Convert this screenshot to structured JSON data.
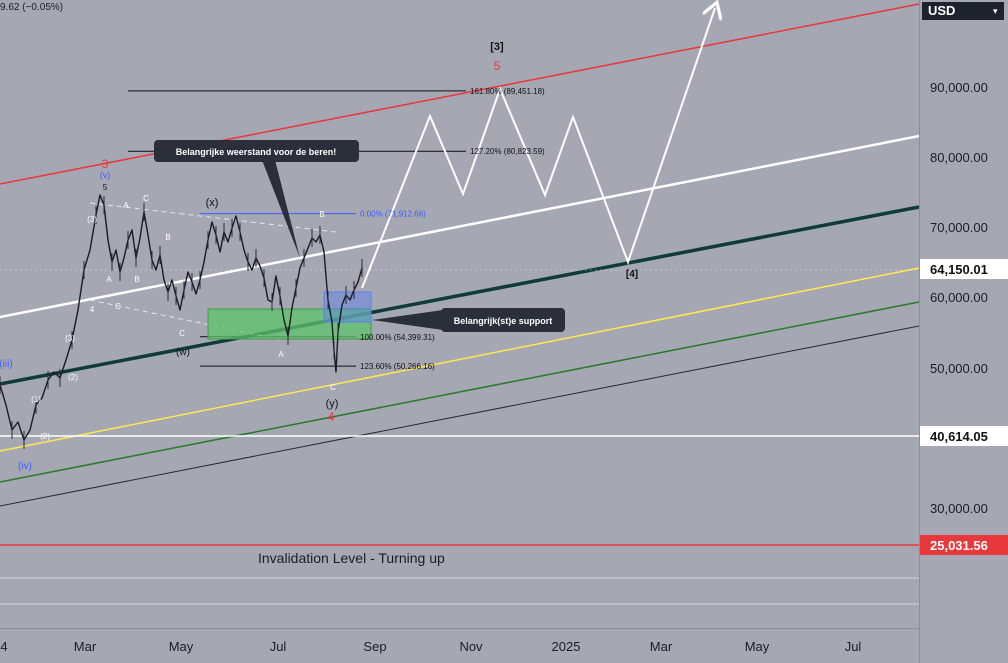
{
  "top_info": "9.62 (−0.05%)",
  "currency": "USD",
  "colors": {
    "background": "#a5a8b3",
    "red_channel": "#e8383c",
    "white_channel": "#ffffff",
    "teal_trend": "#0f3b38",
    "yellow_line": "#ffe94d",
    "green_line": "#2a7a2a",
    "black_line": "#2a2c33",
    "support_zone": "#5ec46a",
    "blue_box": "#5b7ff0",
    "wave_blue": "#3d5cff",
    "wave_red": "#e8383c",
    "callout": "#2b2f3a"
  },
  "chart_data": {
    "type": "line",
    "title": "",
    "ylim": [
      17000,
      102000
    ],
    "x_tick_labels": [
      "4",
      "Mar",
      "May",
      "Jul",
      "Sep",
      "Nov",
      "2025",
      "Mar",
      "May",
      "Jul"
    ],
    "y_tick_labels": [
      "90,000.00",
      "80,000.00",
      "70,000.00",
      "60,000.00",
      "50,000.00",
      "30,000.00"
    ],
    "y_tick_values": [
      90000,
      80000,
      70000,
      60000,
      50000,
      30000
    ],
    "price_tags": [
      {
        "label": "64,150.01",
        "value": 64150.01,
        "bg": "#ffffff",
        "fg": "#111111"
      },
      {
        "label": "40,614.05",
        "value": 40614.05,
        "bg": "#ffffff",
        "fg": "#111111"
      },
      {
        "label": "25,031.56",
        "value": 25031.56,
        "bg": "#e8383c",
        "fg": "#ffffff"
      }
    ],
    "fib_levels": [
      {
        "label": "161.80% (89,451.18)",
        "value": 89451.18
      },
      {
        "label": "127.20% (80,823.59)",
        "value": 80823.59
      },
      {
        "label": "0.00% (71,912.66)",
        "value": 71912.66
      },
      {
        "label": "100.00% (54,399.31)",
        "value": 54399.31
      },
      {
        "label": "123.60% (50,266.16)",
        "value": 50266.16
      }
    ],
    "annotations": {
      "resistance_callout": "Belangrijke weerstand voor de beren!",
      "support_callout": "Belangrijk(st)e support",
      "invalidation": "Invalidation Level - Turning up",
      "wave_3_major": "[3]",
      "wave_5": "5",
      "wave_4_major": "[4]",
      "wave_3_red": "3",
      "wave_4_red": "4",
      "wave_v": "(v)",
      "wave_iii": "(iii)",
      "wave_iv": "(iv)",
      "wave_x": "(x)",
      "wave_w": "(w)",
      "wave_y": "(y)",
      "label_a": "A",
      "label_b": "B",
      "label_c": "C",
      "label_4": "4",
      "label_1": "(1)",
      "label_2": "(2)",
      "label_3": "(3)",
      "label_5": "5"
    },
    "price_path": [
      [
        0,
        385
      ],
      [
        6,
        405
      ],
      [
        12,
        430
      ],
      [
        18,
        422
      ],
      [
        24,
        440
      ],
      [
        30,
        430
      ],
      [
        36,
        405
      ],
      [
        42,
        398
      ],
      [
        48,
        380
      ],
      [
        54,
        372
      ],
      [
        60,
        378
      ],
      [
        66,
        360
      ],
      [
        72,
        340
      ],
      [
        78,
        310
      ],
      [
        84,
        270
      ],
      [
        90,
        250
      ],
      [
        96,
        215
      ],
      [
        100,
        195
      ],
      [
        104,
        205
      ],
      [
        108,
        240
      ],
      [
        112,
        262
      ],
      [
        116,
        250
      ],
      [
        120,
        272
      ],
      [
        124,
        258
      ],
      [
        128,
        240
      ],
      [
        132,
        230
      ],
      [
        136,
        258
      ],
      [
        140,
        238
      ],
      [
        144,
        212
      ],
      [
        148,
        235
      ],
      [
        152,
        260
      ],
      [
        156,
        270
      ],
      [
        160,
        255
      ],
      [
        164,
        280
      ],
      [
        168,
        292
      ],
      [
        172,
        280
      ],
      [
        176,
        296
      ],
      [
        180,
        310
      ],
      [
        184,
        290
      ],
      [
        188,
        272
      ],
      [
        192,
        282
      ],
      [
        196,
        294
      ],
      [
        200,
        280
      ],
      [
        204,
        262
      ],
      [
        208,
        240
      ],
      [
        212,
        222
      ],
      [
        216,
        235
      ],
      [
        220,
        252
      ],
      [
        224,
        232
      ],
      [
        228,
        242
      ],
      [
        232,
        228
      ],
      [
        236,
        216
      ],
      [
        240,
        232
      ],
      [
        244,
        250
      ],
      [
        248,
        262
      ],
      [
        252,
        270
      ],
      [
        256,
        258
      ],
      [
        260,
        266
      ],
      [
        264,
        278
      ],
      [
        268,
        300
      ],
      [
        272,
        302
      ],
      [
        276,
        276
      ],
      [
        280,
        296
      ],
      [
        284,
        320
      ],
      [
        288,
        336
      ],
      [
        292,
        308
      ],
      [
        296,
        288
      ],
      [
        300,
        268
      ],
      [
        304,
        258
      ],
      [
        308,
        248
      ],
      [
        312,
        238
      ],
      [
        316,
        242
      ],
      [
        320,
        235
      ],
      [
        324,
        252
      ],
      [
        328,
        300
      ],
      [
        332,
        322
      ],
      [
        334,
        350
      ],
      [
        336,
        372
      ],
      [
        338,
        332
      ],
      [
        342,
        305
      ],
      [
        346,
        295
      ],
      [
        350,
        300
      ],
      [
        354,
        290
      ],
      [
        358,
        282
      ],
      [
        362,
        268
      ]
    ],
    "projection_path": [
      [
        362,
        288
      ],
      [
        430,
        116
      ],
      [
        463,
        194
      ],
      [
        500,
        89
      ],
      [
        545,
        195
      ],
      [
        573,
        117
      ],
      [
        628,
        262
      ],
      [
        715,
        8
      ]
    ]
  }
}
